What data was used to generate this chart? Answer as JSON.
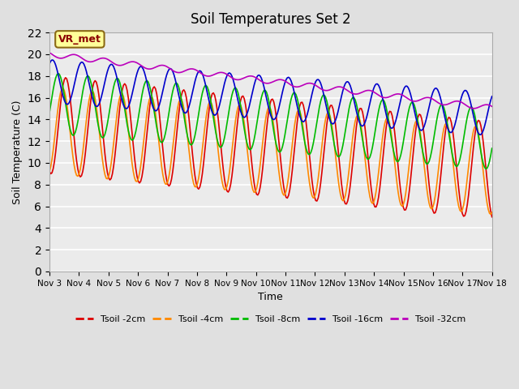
{
  "title": "Soil Temperatures Set 2",
  "xlabel": "Time",
  "ylabel": "Soil Temperature (C)",
  "ylim": [
    0,
    22
  ],
  "yticks": [
    0,
    2,
    4,
    6,
    8,
    10,
    12,
    14,
    16,
    18,
    20,
    22
  ],
  "xtick_labels": [
    "Nov 3",
    "Nov 4",
    "Nov 5",
    "Nov 6",
    "Nov 7",
    "Nov 8",
    "Nov 9",
    "Nov 10",
    "Nov 11",
    "Nov 12",
    "Nov 13",
    "Nov 14",
    "Nov 15",
    "Nov 16",
    "Nov 17",
    "Nov 18"
  ],
  "background_color": "#e0e0e0",
  "plot_bg_color": "#ebebeb",
  "annotation_text": "VR_met",
  "annotation_color": "#8b0000",
  "annotation_bg": "#ffff99",
  "colors": {
    "Tsoil -2cm": "#dd0000",
    "Tsoil -4cm": "#ff8800",
    "Tsoil -8cm": "#00bb00",
    "Tsoil -16cm": "#0000cc",
    "Tsoil -32cm": "#bb00bb"
  },
  "legend_labels": [
    "Tsoil -2cm",
    "Tsoil -4cm",
    "Tsoil -8cm",
    "Tsoil -16cm",
    "Tsoil -32cm"
  ]
}
